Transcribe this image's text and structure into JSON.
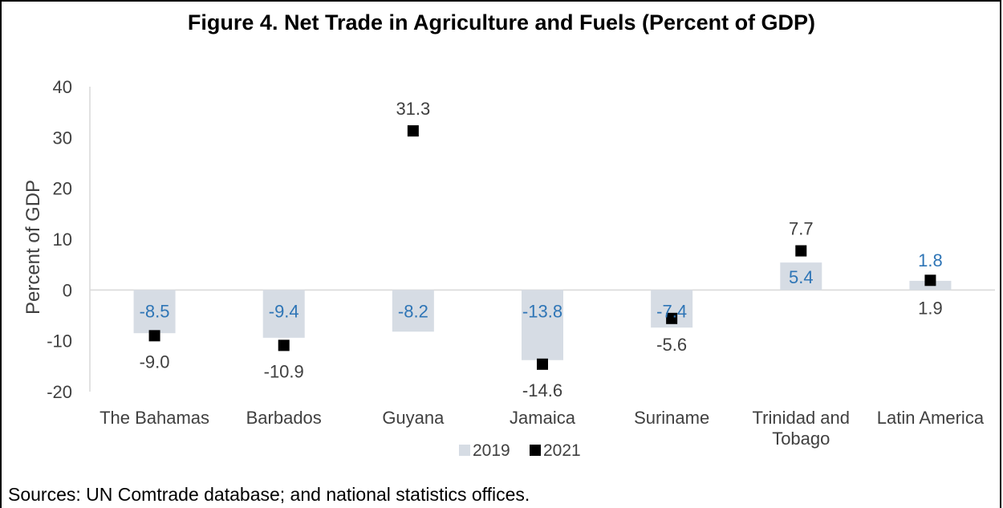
{
  "chart_data": {
    "type": "bar",
    "title": "Figure 4. Net Trade in Agriculture and Fuels (Percent of GDP)",
    "ylabel": "Percent of GDP",
    "ylim": [
      -20,
      40
    ],
    "yticks": [
      -20,
      -10,
      0,
      10,
      20,
      30,
      40
    ],
    "categories": [
      [
        "The Bahamas"
      ],
      [
        "Barbados"
      ],
      [
        "Guyana"
      ],
      [
        "Jamaica"
      ],
      [
        "Suriname"
      ],
      [
        "Trinidad and",
        "Tobago"
      ],
      [
        "Latin America"
      ]
    ],
    "series": [
      {
        "name": "2019",
        "kind": "bar",
        "color": "#d6dce4",
        "label_color": "#2e75b6",
        "values": [
          -8.5,
          -9.4,
          -8.2,
          -13.8,
          -7.4,
          5.4,
          1.8
        ],
        "labels": [
          "-8.5",
          "-9.4",
          "-8.2",
          "-13.8",
          "-7.4",
          "5.4",
          "1.8"
        ]
      },
      {
        "name": "2021",
        "kind": "marker",
        "color": "#000000",
        "label_color": "#404040",
        "values": [
          -9.0,
          -10.9,
          31.3,
          -14.6,
          -5.6,
          7.7,
          1.9
        ],
        "labels": [
          "-9.0",
          "-10.9",
          "31.3",
          "-14.6",
          "-5.6",
          "7.7",
          "1.9"
        ]
      }
    ],
    "legend": {
      "position": "bottom"
    },
    "grid": false
  },
  "source_note": "Sources:  UN Comtrade database; and national statistics offices."
}
